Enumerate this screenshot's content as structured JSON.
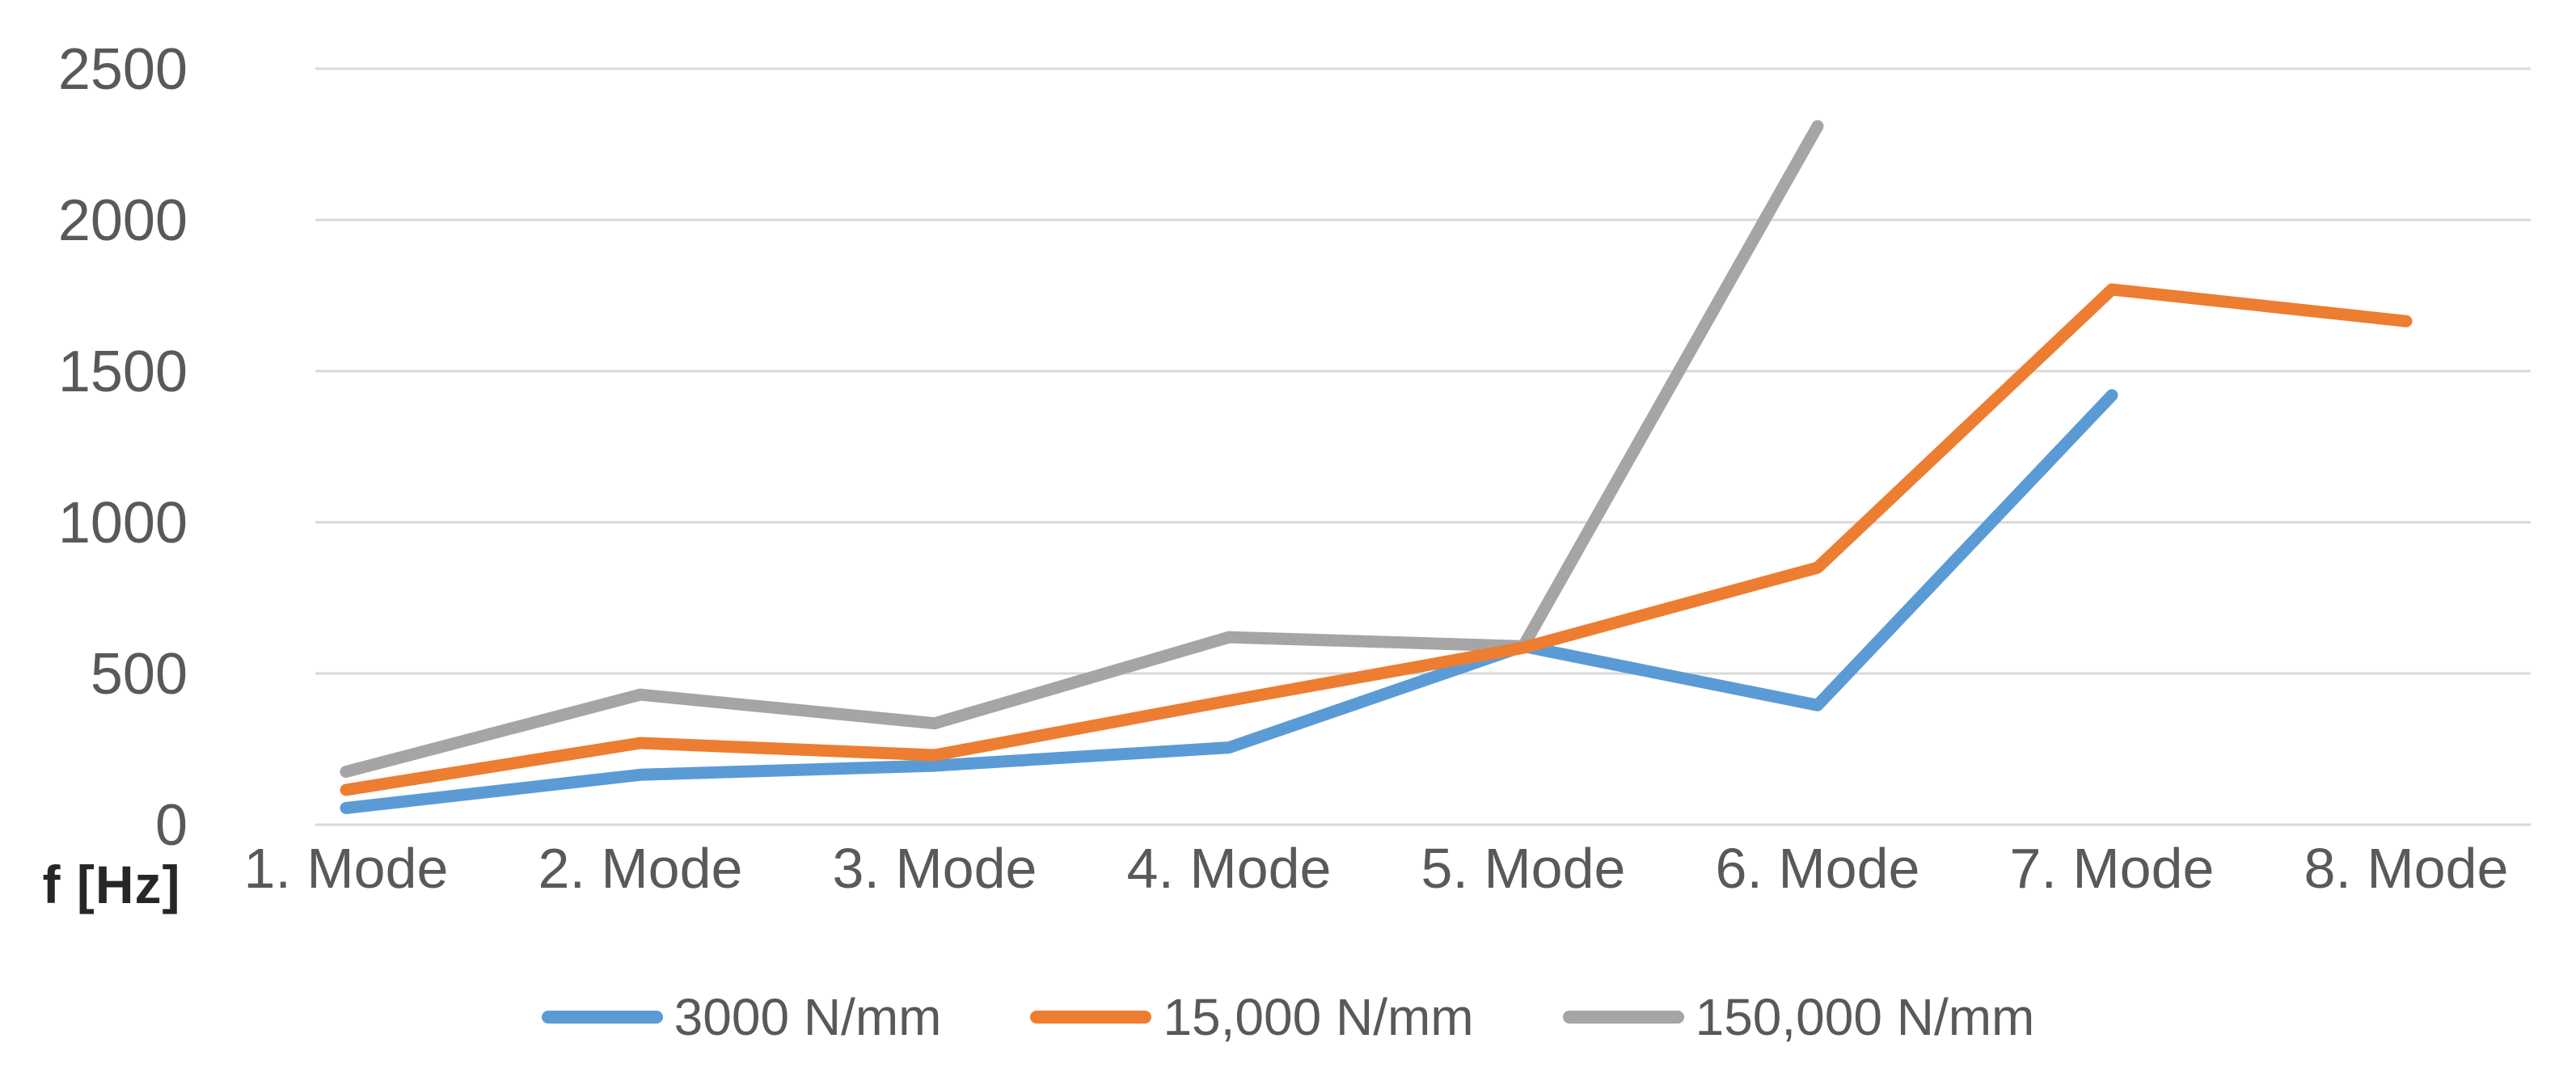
{
  "chart_data": {
    "type": "line",
    "categories": [
      "1. Mode",
      "2. Mode",
      "3. Mode",
      "4. Mode",
      "5. Mode",
      "6. Mode",
      "7. Mode",
      "8. Mode"
    ],
    "series": [
      {
        "name": "3000 N/mm",
        "color": "#5B9BD5",
        "values": [
          55,
          165,
          195,
          255,
          590,
          395,
          1420,
          null
        ]
      },
      {
        "name": "15,000 N/mm",
        "color": "#ED7D31",
        "values": [
          115,
          270,
          230,
          410,
          585,
          850,
          1770,
          1665
        ]
      },
      {
        "name": "150,000 N/mm",
        "color": "#A5A5A5",
        "values": [
          175,
          430,
          335,
          620,
          590,
          2310,
          null,
          null
        ]
      }
    ],
    "ylabel": "f [Hz]",
    "xlabel": "",
    "title": "",
    "yticks": [
      0,
      500,
      1000,
      1500,
      2000,
      2500
    ],
    "ylim": [
      0,
      2500
    ],
    "grid": true,
    "legend_position": "bottom"
  },
  "styles": {
    "background": "#FFFFFF",
    "gridline_color": "#D9D9D9",
    "tick_label_color": "#595959",
    "category_label_color": "#595959",
    "axis_title_color": "#262626",
    "legend_text_color": "#595959"
  }
}
